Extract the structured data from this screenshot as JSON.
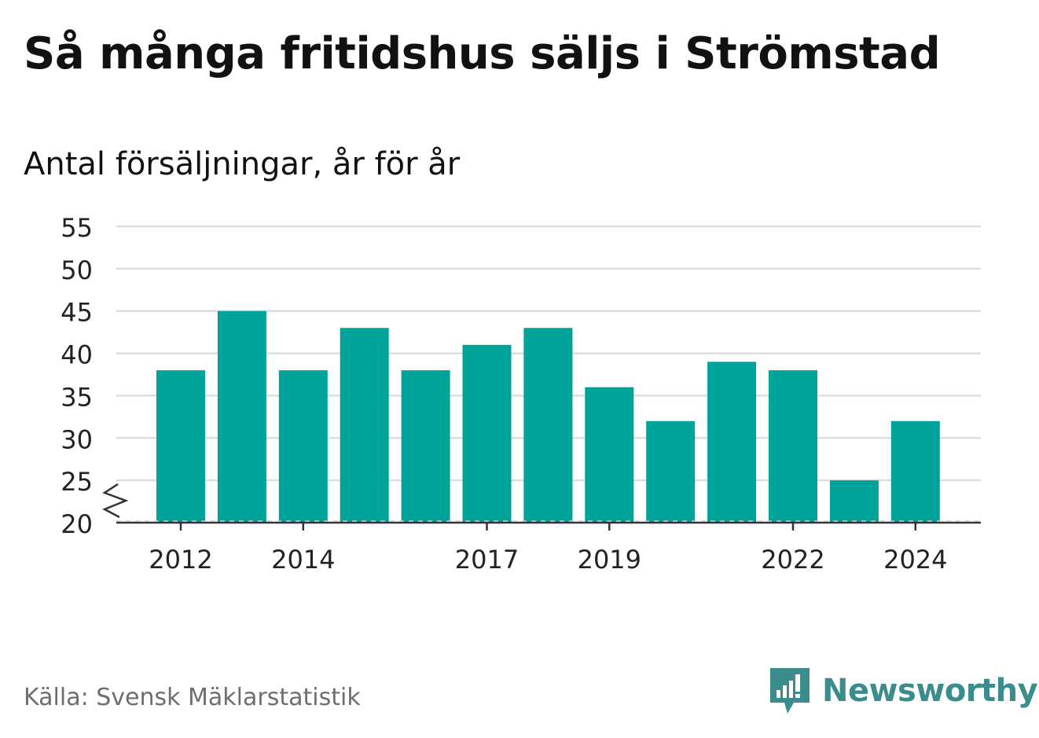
{
  "header": {
    "title": "Så många fritidshus säljs i Strömstad",
    "subtitle": "Antal försäljningar, år för år"
  },
  "footer": {
    "source": "Källa: Svensk Mäklarstatistik",
    "brand": "Newsworthy",
    "brand_icon": "newsworthy-logo-icon"
  },
  "colors": {
    "bar": "#00a39a",
    "grid": "#dddddd",
    "axis": "#333333",
    "brand": "#3b8c8c",
    "source": "#6e6e6e"
  },
  "chart_data": {
    "type": "bar",
    "title": "Så många fritidshus säljs i Strömstad",
    "subtitle": "Antal försäljningar, år för år",
    "categories": [
      "2012",
      "2013",
      "2014",
      "2015",
      "2016",
      "2017",
      "2018",
      "2019",
      "2020",
      "2021",
      "2022",
      "2023",
      "2024"
    ],
    "values": [
      38,
      45,
      38,
      43,
      38,
      41,
      43,
      36,
      32,
      39,
      38,
      25,
      32
    ],
    "x_tick_labels": [
      "2012",
      "2014",
      "2017",
      "2019",
      "2022",
      "2024"
    ],
    "y_ticks": [
      20,
      25,
      30,
      35,
      40,
      45,
      50,
      55
    ],
    "ylim": [
      20,
      55
    ],
    "y_axis_break": true,
    "xlabel": "",
    "ylabel": "",
    "grid": true,
    "legend": "none"
  }
}
